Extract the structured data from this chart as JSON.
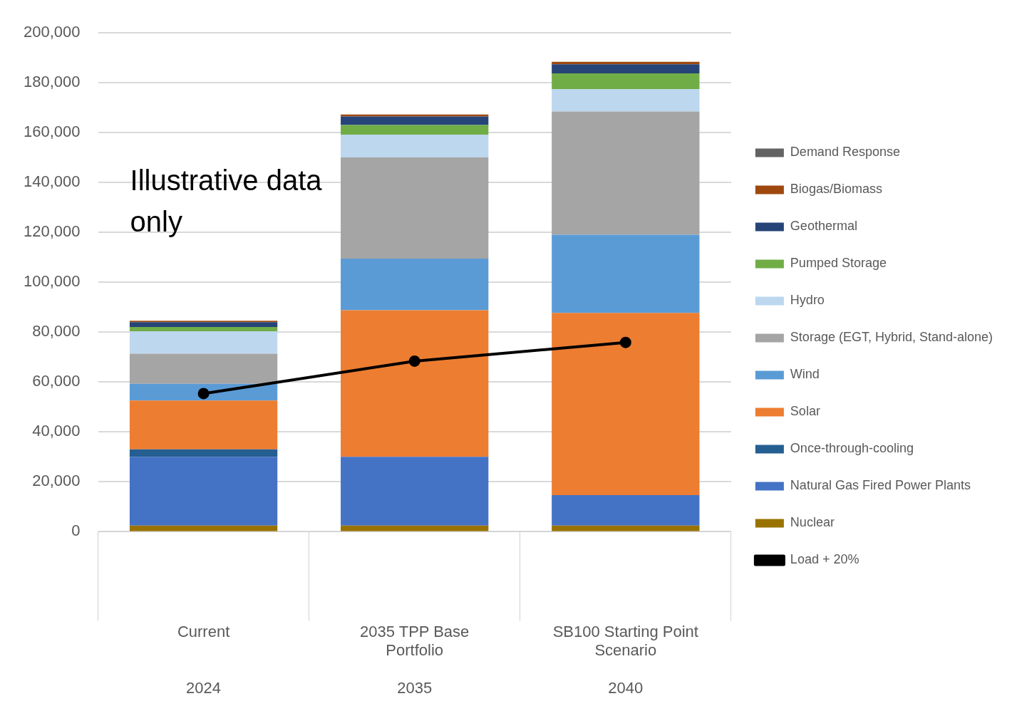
{
  "chart_data": {
    "type": "bar",
    "stacked": true,
    "categories": [
      "Current\n2024",
      "2035 TPP Base Portfolio\n2035",
      "SB100 Starting Point Scenario\n2040"
    ],
    "series": [
      {
        "name": "Nuclear",
        "color": "#997300",
        "values": [
          2500,
          2500,
          2500
        ]
      },
      {
        "name": "Natural Gas Fired Power Plants",
        "color": "#4472c4",
        "values": [
          27500,
          27500,
          12200
        ]
      },
      {
        "name": "Once-through-cooling",
        "color": "#255e91",
        "values": [
          3000,
          0,
          0
        ]
      },
      {
        "name": "Solar",
        "color": "#ed7d31",
        "values": [
          19600,
          58800,
          73000
        ]
      },
      {
        "name": "Wind",
        "color": "#5b9bd5",
        "values": [
          6700,
          20700,
          31400
        ]
      },
      {
        "name": "Storage (EGT, Hybrid, Stand-alone)",
        "color": "#a5a5a5",
        "values": [
          12100,
          40600,
          49400
        ]
      },
      {
        "name": "Hydro",
        "color": "#bdd7ee",
        "values": [
          9000,
          9100,
          8900
        ]
      },
      {
        "name": "Pumped Storage",
        "color": "#70ad47",
        "values": [
          1700,
          3900,
          6400
        ]
      },
      {
        "name": "Geothermal",
        "color": "#264478",
        "values": [
          1900,
          3400,
          3600
        ]
      },
      {
        "name": "Biogas/Biomass",
        "color": "#9e480e",
        "values": [
          600,
          800,
          1000
        ]
      },
      {
        "name": "Demand Response",
        "color": "#636363",
        "values": [
          0,
          0,
          0
        ]
      },
      {
        "name": "Load + 20%",
        "type": "line",
        "color": "#000000",
        "marker": "circle",
        "line_style": "solid",
        "values": [
          55400,
          68400,
          75900
        ]
      }
    ],
    "ylim": [
      0,
      200000
    ],
    "yticks": [
      {
        "value": 0,
        "label": "0"
      },
      {
        "value": 20000,
        "label": "20,000"
      },
      {
        "value": 40000,
        "label": "40,000"
      },
      {
        "value": 60000,
        "label": "60,000"
      },
      {
        "value": 80000,
        "label": "80,000"
      },
      {
        "value": 100000,
        "label": "100,000"
      },
      {
        "value": 120000,
        "label": "120,000"
      },
      {
        "value": 140000,
        "label": "140,000"
      },
      {
        "value": 160000,
        "label": "160,000"
      },
      {
        "value": 180000,
        "label": "180,000"
      },
      {
        "value": 200000,
        "label": "200,000"
      }
    ],
    "grid": "y",
    "legend": "right",
    "annotations": [
      "Illustrative data only"
    ]
  }
}
